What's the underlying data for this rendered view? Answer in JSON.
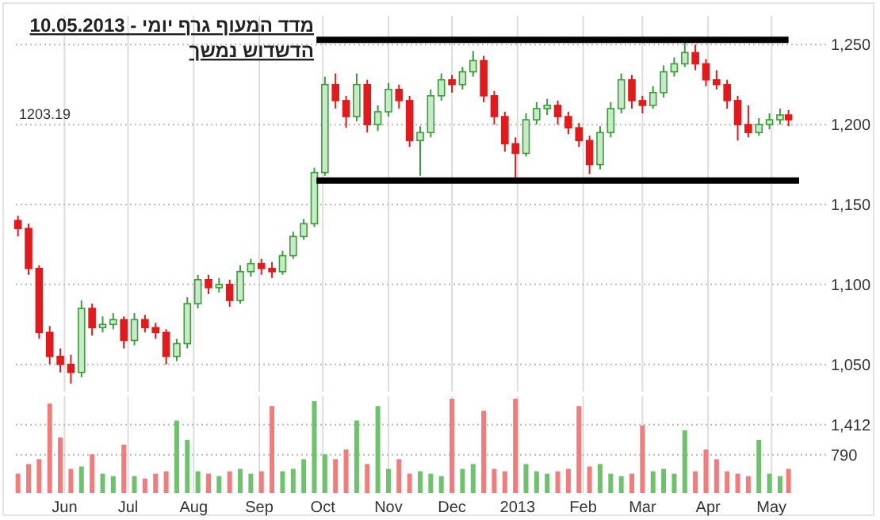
{
  "chart_data": [
    {
      "type": "candlestick",
      "title": "מדד המעוף גרף יומי - 10.05.2013",
      "subtitle": "הדשדוש נמשך",
      "x": [
        "2012-05-10",
        "2012-05-15",
        "2012-05-20",
        "2012-05-25",
        "2012-05-30",
        "2012-06-04",
        "2012-06-09",
        "2012-06-14",
        "2012-06-19",
        "2012-06-24",
        "2012-06-29",
        "2012-07-04",
        "2012-07-09",
        "2012-07-14",
        "2012-07-19",
        "2012-07-24",
        "2012-07-29",
        "2012-08-03",
        "2012-08-08",
        "2012-08-13",
        "2012-08-18",
        "2012-08-23",
        "2012-08-28",
        "2012-09-02",
        "2012-09-07",
        "2012-09-12",
        "2012-09-17",
        "2012-09-22",
        "2012-09-27",
        "2012-10-02",
        "2012-10-07",
        "2012-10-12",
        "2012-10-17",
        "2012-10-22",
        "2012-10-27",
        "2012-11-01",
        "2012-11-06",
        "2012-11-11",
        "2012-11-16",
        "2012-11-21",
        "2012-11-26",
        "2012-12-01",
        "2012-12-06",
        "2012-12-11",
        "2012-12-16",
        "2012-12-21",
        "2012-12-26",
        "2012-12-31",
        "2013-01-05",
        "2013-01-10",
        "2013-01-15",
        "2013-01-20",
        "2013-01-25",
        "2013-01-30",
        "2013-02-04",
        "2013-02-09",
        "2013-02-14",
        "2013-02-19",
        "2013-02-24",
        "2013-03-01",
        "2013-03-06",
        "2013-03-11",
        "2013-03-16",
        "2013-03-21",
        "2013-03-26",
        "2013-03-31",
        "2013-04-05",
        "2013-04-10",
        "2013-04-15",
        "2013-04-20",
        "2013-04-25",
        "2013-04-30",
        "2013-05-05",
        "2013-05-09"
      ],
      "ohlc": [
        [
          1140,
          1143,
          1130,
          1135
        ],
        [
          1135,
          1138,
          1106,
          1110
        ],
        [
          1110,
          1112,
          1066,
          1070
        ],
        [
          1070,
          1074,
          1050,
          1055
        ],
        [
          1055,
          1060,
          1045,
          1050
        ],
        [
          1050,
          1056,
          1038,
          1045
        ],
        [
          1045,
          1090,
          1042,
          1085
        ],
        [
          1085,
          1088,
          1068,
          1073
        ],
        [
          1073,
          1080,
          1070,
          1075
        ],
        [
          1075,
          1082,
          1072,
          1078
        ],
        [
          1078,
          1080,
          1060,
          1065
        ],
        [
          1065,
          1082,
          1062,
          1078
        ],
        [
          1078,
          1081,
          1070,
          1073
        ],
        [
          1073,
          1076,
          1066,
          1070
        ],
        [
          1070,
          1072,
          1050,
          1055
        ],
        [
          1055,
          1066,
          1052,
          1063
        ],
        [
          1063,
          1092,
          1060,
          1088
        ],
        [
          1088,
          1106,
          1085,
          1103
        ],
        [
          1103,
          1106,
          1094,
          1098
        ],
        [
          1098,
          1104,
          1095,
          1100
        ],
        [
          1100,
          1103,
          1086,
          1090
        ],
        [
          1090,
          1112,
          1088,
          1108
        ],
        [
          1108,
          1116,
          1105,
          1113
        ],
        [
          1113,
          1116,
          1106,
          1110
        ],
        [
          1110,
          1114,
          1104,
          1108
        ],
        [
          1108,
          1121,
          1106,
          1118
        ],
        [
          1118,
          1133,
          1116,
          1130
        ],
        [
          1130,
          1141,
          1128,
          1138
        ],
        [
          1138,
          1173,
          1136,
          1170
        ],
        [
          1170,
          1230,
          1168,
          1225
        ],
        [
          1225,
          1232,
          1210,
          1215
        ],
        [
          1215,
          1218,
          1198,
          1205
        ],
        [
          1205,
          1232,
          1202,
          1225
        ],
        [
          1225,
          1228,
          1195,
          1200
        ],
        [
          1200,
          1212,
          1196,
          1208
        ],
        [
          1208,
          1226,
          1205,
          1222
        ],
        [
          1222,
          1225,
          1210,
          1215
        ],
        [
          1215,
          1218,
          1186,
          1190
        ],
        [
          1190,
          1199,
          1168,
          1195
        ],
        [
          1195,
          1222,
          1192,
          1218
        ],
        [
          1218,
          1232,
          1215,
          1228
        ],
        [
          1228,
          1231,
          1220,
          1225
        ],
        [
          1225,
          1236,
          1222,
          1233
        ],
        [
          1233,
          1246,
          1230,
          1240
        ],
        [
          1240,
          1243,
          1214,
          1218
        ],
        [
          1218,
          1221,
          1200,
          1205
        ],
        [
          1205,
          1208,
          1183,
          1188
        ],
        [
          1188,
          1192,
          1165,
          1182
        ],
        [
          1182,
          1207,
          1180,
          1203
        ],
        [
          1203,
          1214,
          1200,
          1210
        ],
        [
          1210,
          1216,
          1206,
          1212
        ],
        [
          1212,
          1215,
          1200,
          1205
        ],
        [
          1205,
          1208,
          1194,
          1198
        ],
        [
          1198,
          1201,
          1186,
          1190
        ],
        [
          1190,
          1193,
          1169,
          1175
        ],
        [
          1175,
          1199,
          1172,
          1195
        ],
        [
          1195,
          1214,
          1192,
          1210
        ],
        [
          1210,
          1232,
          1207,
          1228
        ],
        [
          1228,
          1231,
          1210,
          1215
        ],
        [
          1215,
          1218,
          1207,
          1212
        ],
        [
          1212,
          1224,
          1210,
          1220
        ],
        [
          1220,
          1237,
          1217,
          1233
        ],
        [
          1233,
          1242,
          1230,
          1238
        ],
        [
          1238,
          1252,
          1236,
          1245
        ],
        [
          1245,
          1250,
          1234,
          1238
        ],
        [
          1238,
          1241,
          1224,
          1228
        ],
        [
          1228,
          1234,
          1222,
          1225
        ],
        [
          1225,
          1228,
          1210,
          1215
        ],
        [
          1215,
          1218,
          1190,
          1200
        ],
        [
          1200,
          1212,
          1192,
          1195
        ],
        [
          1195,
          1204,
          1193,
          1200
        ],
        [
          1200,
          1207,
          1197,
          1203
        ],
        [
          1203,
          1210,
          1200,
          1206
        ],
        [
          1206,
          1209,
          1199,
          1203
        ]
      ],
      "colors": [
        "#e31a1c",
        "#e31a1c",
        "#e31a1c",
        "#e31a1c",
        "#e31a1c",
        "#e31a1c",
        "#3a9d3a",
        "#e31a1c",
        "#3a9d3a",
        "#3a9d3a",
        "#e31a1c",
        "#3a9d3a",
        "#e31a1c",
        "#e31a1c",
        "#e31a1c",
        "#3a9d3a",
        "#3a9d3a",
        "#3a9d3a",
        "#e31a1c",
        "#3a9d3a",
        "#e31a1c",
        "#3a9d3a",
        "#3a9d3a",
        "#e31a1c",
        "#e31a1c",
        "#3a9d3a",
        "#3a9d3a",
        "#3a9d3a",
        "#3a9d3a",
        "#3a9d3a",
        "#e31a1c",
        "#e31a1c",
        "#3a9d3a",
        "#e31a1c",
        "#3a9d3a",
        "#3a9d3a",
        "#e31a1c",
        "#e31a1c",
        "#3a9d3a",
        "#3a9d3a",
        "#3a9d3a",
        "#e31a1c",
        "#3a9d3a",
        "#3a9d3a",
        "#e31a1c",
        "#e31a1c",
        "#e31a1c",
        "#e31a1c",
        "#3a9d3a",
        "#3a9d3a",
        "#3a9d3a",
        "#e31a1c",
        "#e31a1c",
        "#e31a1c",
        "#e31a1c",
        "#3a9d3a",
        "#3a9d3a",
        "#3a9d3a",
        "#e31a1c",
        "#e31a1c",
        "#3a9d3a",
        "#3a9d3a",
        "#3a9d3a",
        "#3a9d3a",
        "#e31a1c",
        "#e31a1c",
        "#e31a1c",
        "#e31a1c",
        "#e31a1c",
        "#e31a1c",
        "#3a9d3a",
        "#3a9d3a",
        "#3a9d3a",
        "#e31a1c"
      ],
      "series": [
        {
          "type": "line",
          "color": "#000000",
          "x": [
            "2012-09-28",
            "2013-05-09"
          ],
          "values": [
            1253,
            1253
          ]
        },
        {
          "type": "line",
          "color": "#000000",
          "x": [
            "2012-09-28",
            "2013-05-14"
          ],
          "values": [
            1165,
            1165
          ]
        }
      ],
      "annotations": [
        "1203.19"
      ],
      "xlim": [
        "2012-05-09",
        "2013-05-26"
      ],
      "xticks": [
        {
          "value": "2012-06-01",
          "label": null
        },
        {
          "value": "2012-07-01",
          "label": null
        },
        {
          "value": "2012-08-01",
          "label": null
        },
        {
          "value": "2012-09-01",
          "label": null
        },
        {
          "value": "2012-10-01",
          "label": null
        },
        {
          "value": "2012-11-01",
          "label": null
        },
        {
          "value": "2012-12-01",
          "label": null
        },
        {
          "value": "2013-01-01",
          "label": null
        },
        {
          "value": "2013-02-01",
          "label": null
        },
        {
          "value": "2013-03-01",
          "label": null
        },
        {
          "value": "2013-04-01",
          "label": null
        },
        {
          "value": "2013-05-01",
          "label": null
        }
      ],
      "ylim": [
        1033,
        1268
      ],
      "yticks": [
        {
          "value": 1050,
          "label": "1,050"
        },
        {
          "value": 1100,
          "label": "1,100"
        },
        {
          "value": 1150,
          "label": "1,150"
        },
        {
          "value": 1200,
          "label": "1,200"
        },
        {
          "value": 1250,
          "label": "1,250"
        }
      ],
      "grid": true,
      "tick_labels": "y"
    },
    {
      "type": "bar",
      "x": [
        "2012-05-10",
        "2012-05-15",
        "2012-05-20",
        "2012-05-25",
        "2012-05-30",
        "2012-06-04",
        "2012-06-09",
        "2012-06-14",
        "2012-06-19",
        "2012-06-24",
        "2012-06-29",
        "2012-07-04",
        "2012-07-09",
        "2012-07-14",
        "2012-07-19",
        "2012-07-24",
        "2012-07-29",
        "2012-08-03",
        "2012-08-08",
        "2012-08-13",
        "2012-08-18",
        "2012-08-23",
        "2012-08-28",
        "2012-09-02",
        "2012-09-07",
        "2012-09-12",
        "2012-09-17",
        "2012-09-22",
        "2012-09-27",
        "2012-10-02",
        "2012-10-07",
        "2012-10-12",
        "2012-10-17",
        "2012-10-22",
        "2012-10-27",
        "2012-11-01",
        "2012-11-06",
        "2012-11-11",
        "2012-11-16",
        "2012-11-21",
        "2012-11-26",
        "2012-12-01",
        "2012-12-06",
        "2012-12-11",
        "2012-12-16",
        "2012-12-21",
        "2012-12-26",
        "2012-12-31",
        "2013-01-05",
        "2013-01-10",
        "2013-01-15",
        "2013-01-20",
        "2013-01-25",
        "2013-01-30",
        "2013-02-04",
        "2013-02-09",
        "2013-02-14",
        "2013-02-19",
        "2013-02-24",
        "2013-03-01",
        "2013-03-06",
        "2013-03-11",
        "2013-03-16",
        "2013-03-21",
        "2013-03-26",
        "2013-03-31",
        "2013-04-05",
        "2013-04-10",
        "2013-04-15",
        "2013-04-20",
        "2013-04-25",
        "2013-04-30",
        "2013-05-05",
        "2013-05-09"
      ],
      "values": [
        400,
        600,
        700,
        1850,
        1150,
        500,
        550,
        800,
        400,
        350,
        1000,
        350,
        300,
        400,
        450,
        1500,
        1100,
        450,
        400,
        350,
        450,
        500,
        400,
        450,
        1800,
        450,
        500,
        700,
        1900,
        800,
        700,
        900,
        1500,
        600,
        1800,
        500,
        700,
        400,
        450,
        400,
        350,
        1950,
        500,
        600,
        1700,
        500,
        450,
        1950,
        600,
        450,
        400,
        450,
        500,
        1800,
        550,
        600,
        400,
        350,
        400,
        1400,
        450,
        500,
        400,
        1300,
        450,
        900,
        700,
        450,
        400,
        350,
        1100,
        400,
        350,
        500
      ],
      "colors": [
        "#f27b7b",
        "#f27b7b",
        "#f27b7b",
        "#f27b7b",
        "#f27b7b",
        "#f27b7b",
        "#6cc36c",
        "#f27b7b",
        "#6cc36c",
        "#6cc36c",
        "#f27b7b",
        "#6cc36c",
        "#f27b7b",
        "#f27b7b",
        "#f27b7b",
        "#6cc36c",
        "#6cc36c",
        "#6cc36c",
        "#f27b7b",
        "#6cc36c",
        "#f27b7b",
        "#6cc36c",
        "#6cc36c",
        "#f27b7b",
        "#f27b7b",
        "#6cc36c",
        "#6cc36c",
        "#6cc36c",
        "#6cc36c",
        "#6cc36c",
        "#f27b7b",
        "#f27b7b",
        "#6cc36c",
        "#f27b7b",
        "#6cc36c",
        "#6cc36c",
        "#f27b7b",
        "#f27b7b",
        "#6cc36c",
        "#6cc36c",
        "#6cc36c",
        "#f27b7b",
        "#6cc36c",
        "#6cc36c",
        "#f27b7b",
        "#f27b7b",
        "#f27b7b",
        "#f27b7b",
        "#6cc36c",
        "#6cc36c",
        "#6cc36c",
        "#f27b7b",
        "#f27b7b",
        "#f27b7b",
        "#f27b7b",
        "#6cc36c",
        "#6cc36c",
        "#6cc36c",
        "#f27b7b",
        "#f27b7b",
        "#6cc36c",
        "#6cc36c",
        "#6cc36c",
        "#6cc36c",
        "#f27b7b",
        "#f27b7b",
        "#f27b7b",
        "#f27b7b",
        "#f27b7b",
        "#f27b7b",
        "#6cc36c",
        "#6cc36c",
        "#6cc36c",
        "#f27b7b"
      ],
      "xlim": [
        "2012-05-09",
        "2013-05-26"
      ],
      "xticks": [
        {
          "value": "2012-06-01",
          "label": "Jun"
        },
        {
          "value": "2012-07-01",
          "label": "Jul"
        },
        {
          "value": "2012-08-01",
          "label": "Aug"
        },
        {
          "value": "2012-09-01",
          "label": "Sep"
        },
        {
          "value": "2012-10-01",
          "label": "Oct"
        },
        {
          "value": "2012-11-01",
          "label": "Nov"
        },
        {
          "value": "2012-12-01",
          "label": "Dec"
        },
        {
          "value": "2013-01-01",
          "label": "2013"
        },
        {
          "value": "2013-02-01",
          "label": "Feb"
        },
        {
          "value": "2013-03-01",
          "label": "Mar"
        },
        {
          "value": "2013-04-01",
          "label": "Apr"
        },
        {
          "value": "2013-05-01",
          "label": "May"
        }
      ],
      "ylim": [
        0,
        2000
      ],
      "yticks": [
        790,
        {
          "value": 1412,
          "label": "1,412"
        }
      ],
      "grid": true
    }
  ]
}
